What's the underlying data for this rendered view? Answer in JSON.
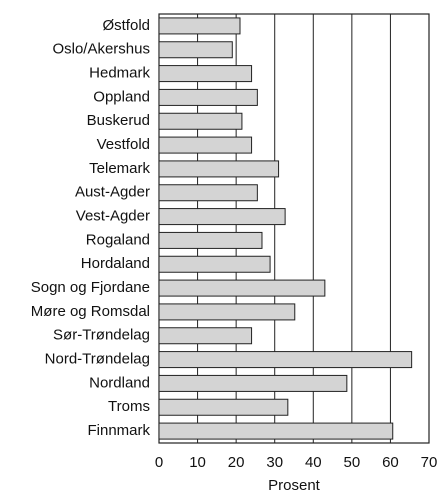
{
  "chart_data": {
    "type": "bar",
    "orientation": "horizontal",
    "xlabel": "Prosent",
    "categories": [
      "Østfold",
      "Oslo/Akershus",
      "Hedmark",
      "Oppland",
      "Buskerud",
      "Vestfold",
      "Telemark",
      "Aust-Agder",
      "Vest-Agder",
      "Rogaland",
      "Hordaland",
      "Sogn og Fjordane",
      "Møre og Romsdal",
      "Sør-Trøndelag",
      "Nord-Trøndelag",
      "Nordland",
      "Troms",
      "Finnmark"
    ],
    "values": [
      21,
      19,
      24,
      25.5,
      21.5,
      24,
      31,
      25.5,
      32.7,
      26.7,
      28.8,
      43,
      35.2,
      24,
      65.5,
      48.7,
      33.4,
      60.6
    ],
    "color": "#d4d4d4",
    "xlim": [
      0,
      70
    ],
    "xticks": [
      0,
      10,
      20,
      30,
      40,
      50,
      60,
      70
    ],
    "grid": true
  }
}
